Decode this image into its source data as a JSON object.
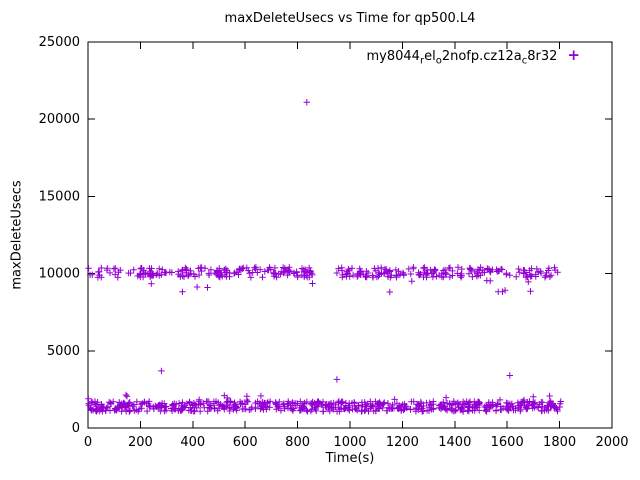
{
  "chart_data": {
    "type": "scatter",
    "title": "maxDeleteUsecs vs Time for qp500.L4",
    "xlabel": "Time(s)",
    "ylabel": "maxDeleteUsecs",
    "xlim": [
      0,
      2000
    ],
    "ylim": [
      0,
      25000
    ],
    "xticks": [
      0,
      200,
      400,
      600,
      800,
      1000,
      1200,
      1400,
      1600,
      1800,
      2000
    ],
    "yticks": [
      0,
      5000,
      10000,
      15000,
      20000,
      25000
    ],
    "grid": false,
    "legend_position": "top-right",
    "series": [
      {
        "name": "my8044_rel_o2nofp.cz12a_c8r32",
        "marker": "plus",
        "color": "#9400d3",
        "bands": [
          {
            "label": "upper-band-~10000us",
            "x_range": [
              0,
              1805
            ],
            "y_center": 10080,
            "y_jitter": 330,
            "count": 380,
            "gap_x": [
              862,
              945
            ],
            "low_tail": {
              "prob": 0.05,
              "y_range": [
                8800,
                9600
              ]
            }
          },
          {
            "label": "lower-band-~1400us",
            "x_range": [
              0,
              1805
            ],
            "y_center": 1400,
            "y_jitter": 330,
            "count": 650,
            "high_tail": {
              "prob": 0.02,
              "y_range": [
                1800,
                2150
              ]
            }
          }
        ],
        "outliers": [
          [
            835,
            21100
          ],
          [
            280,
            3700
          ],
          [
            950,
            3150
          ],
          [
            1610,
            3400
          ]
        ]
      }
    ]
  },
  "legend": {
    "segments": [
      {
        "t": "my8044"
      },
      {
        "t": "r",
        "sub": true
      },
      {
        "t": "el"
      },
      {
        "t": "o",
        "sub": true
      },
      {
        "t": "2nofp.cz12a"
      },
      {
        "t": "c",
        "sub": true
      },
      {
        "t": "8r32"
      }
    ]
  },
  "axis": {
    "border_color": "#000000",
    "background": "#ffffff"
  }
}
